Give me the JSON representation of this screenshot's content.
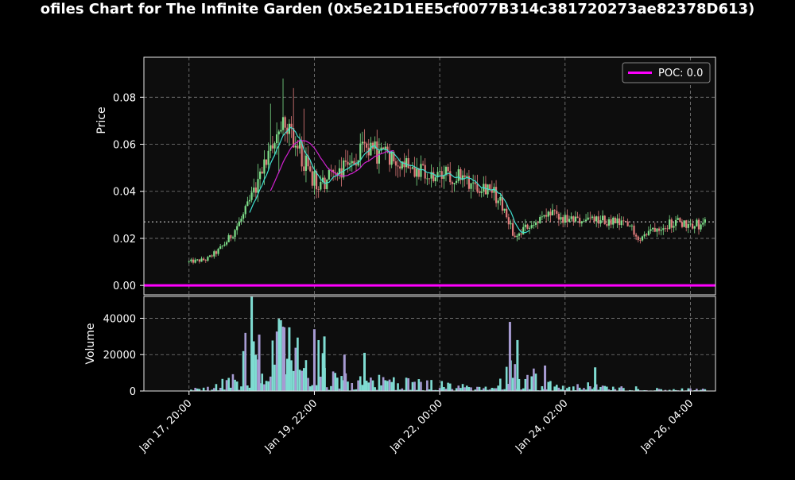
{
  "title": "ofiles Chart for The Infinite Garden (0x5e21D1EE5cf0077B314c381720273ae82378D613)",
  "colors": {
    "background": "#000000",
    "panel": "#0d0d0d",
    "up": "#7ee08a",
    "down": "#e07b7b",
    "ma_fast": "#3fe0d0",
    "ma_slow": "#d020d0",
    "poc": "#ff00ff",
    "grid": "#808080",
    "hline": "#9a9a9a",
    "vol_a": "#7fdcd2",
    "vol_b": "#a79bd3"
  },
  "chart_data": [
    {
      "type": "candlestick",
      "ylabel": "Price",
      "ylim": [
        -0.004,
        0.097
      ],
      "yticks": [
        0.0,
        0.02,
        0.04,
        0.06,
        0.08
      ],
      "ytick_labels": [
        "0.00",
        "0.02",
        "0.04",
        "0.06",
        "0.08"
      ],
      "x_range": [
        "2025-01-17 02:00",
        "2025-01-26 14:00"
      ],
      "grid": true,
      "legend": {
        "position": "top-right",
        "entries": [
          "POC: 0.0"
        ]
      },
      "poc": 0.0,
      "hline": 0.027,
      "price_path": [
        [
          "2025-01-17 20:00",
          0.01
        ],
        [
          "2025-01-18 03:00",
          0.011
        ],
        [
          "2025-01-18 08:00",
          0.015
        ],
        [
          "2025-01-18 12:00",
          0.02
        ],
        [
          "2025-01-18 18:00",
          0.03
        ],
        [
          "2025-01-19 00:00",
          0.045
        ],
        [
          "2025-01-19 06:00",
          0.062
        ],
        [
          "2025-01-19 10:00",
          0.07
        ],
        [
          "2025-01-19 14:00",
          0.062
        ],
        [
          "2025-01-19 20:00",
          0.048
        ],
        [
          "2025-01-20 00:00",
          0.042
        ],
        [
          "2025-01-20 06:00",
          0.048
        ],
        [
          "2025-01-20 12:00",
          0.052
        ],
        [
          "2025-01-20 18:00",
          0.057
        ],
        [
          "2025-01-21 00:00",
          0.056
        ],
        [
          "2025-01-21 06:00",
          0.055
        ],
        [
          "2025-01-21 12:00",
          0.052
        ],
        [
          "2025-01-21 20:00",
          0.045
        ],
        [
          "2025-01-22 04:00",
          0.047
        ],
        [
          "2025-01-22 12:00",
          0.044
        ],
        [
          "2025-01-22 20:00",
          0.042
        ],
        [
          "2025-01-23 02:00",
          0.032
        ],
        [
          "2025-01-23 06:00",
          0.02
        ],
        [
          "2025-01-23 12:00",
          0.026
        ],
        [
          "2025-01-23 20:00",
          0.03
        ],
        [
          "2025-01-24 04:00",
          0.027
        ],
        [
          "2025-01-24 12:00",
          0.028
        ],
        [
          "2025-01-24 20:00",
          0.027
        ],
        [
          "2025-01-25 04:00",
          0.025
        ],
        [
          "2025-01-25 08:00",
          0.02
        ],
        [
          "2025-01-25 14:00",
          0.025
        ],
        [
          "2025-01-25 22:00",
          0.027
        ],
        [
          "2025-01-26 06:00",
          0.026
        ],
        [
          "2025-01-26 10:00",
          0.026
        ]
      ]
    },
    {
      "type": "bar",
      "ylabel": "Volume",
      "ylim": [
        0,
        52000
      ],
      "yticks": [
        0,
        20000,
        40000
      ],
      "ytick_labels": [
        "0",
        "20000",
        "40000"
      ],
      "xtick_labels": [
        "Jan 17, 20:00",
        "Jan 19, 22:00",
        "Jan 22, 00:00",
        "Jan 24, 02:00",
        "Jan 26, 04:00"
      ],
      "xtick_dates": [
        "2025-01-17 20:00",
        "2025-01-19 22:00",
        "2025-01-22 00:00",
        "2025-01-24 02:00",
        "2025-01-26 04:00"
      ],
      "volume_profile": [
        [
          "2025-01-17 20:00",
          800
        ],
        [
          "2025-01-18 06:00",
          2500
        ],
        [
          "2025-01-18 12:00",
          6000
        ],
        [
          "2025-01-18 16:00",
          9000
        ],
        [
          "2025-01-18 20:00",
          30000
        ],
        [
          "2025-01-19 06:00",
          25000
        ],
        [
          "2025-01-19 12:00",
          30000
        ],
        [
          "2025-01-19 18:00",
          12000
        ],
        [
          "2025-01-20 00:00",
          22000
        ],
        [
          "2025-01-20 06:00",
          9000
        ],
        [
          "2025-01-20 12:00",
          6000
        ],
        [
          "2025-01-20 20:00",
          6000
        ],
        [
          "2025-01-21 06:00",
          6000
        ],
        [
          "2025-01-21 14:00",
          5000
        ],
        [
          "2025-01-21 22:00",
          4000
        ],
        [
          "2025-01-22 06:00",
          3000
        ],
        [
          "2025-01-22 14:00",
          2000
        ],
        [
          "2025-01-22 22:00",
          1500
        ],
        [
          "2025-01-23 04:00",
          12000
        ],
        [
          "2025-01-23 10:00",
          10000
        ],
        [
          "2025-01-23 16:00",
          7000
        ],
        [
          "2025-01-23 22:00",
          3000
        ],
        [
          "2025-01-24 06:00",
          2500
        ],
        [
          "2025-01-24 14:00",
          3500
        ],
        [
          "2025-01-24 20:00",
          1500
        ],
        [
          "2025-01-25 04:00",
          2500
        ],
        [
          "2025-01-25 12:00",
          1200
        ],
        [
          "2025-01-25 20:00",
          1200
        ],
        [
          "2025-01-26 04:00",
          1000
        ],
        [
          "2025-01-26 10:00",
          800
        ]
      ],
      "volume_spikes": [
        [
          "2025-01-18 21:00",
          52000
        ],
        [
          "2025-01-19 00:00",
          31000
        ],
        [
          "2025-01-19 08:00",
          37000
        ],
        [
          "2025-01-19 10:00",
          35000
        ],
        [
          "2025-01-19 12:00",
          35000
        ],
        [
          "2025-01-19 22:00",
          34000
        ],
        [
          "2025-01-20 02:00",
          30000
        ],
        [
          "2025-01-20 10:00",
          20000
        ],
        [
          "2025-01-20 18:00",
          21000
        ],
        [
          "2025-01-23 04:00",
          38000
        ],
        [
          "2025-01-23 07:00",
          28000
        ],
        [
          "2025-01-23 18:00",
          14000
        ],
        [
          "2025-01-24 14:00",
          13000
        ]
      ]
    }
  ]
}
